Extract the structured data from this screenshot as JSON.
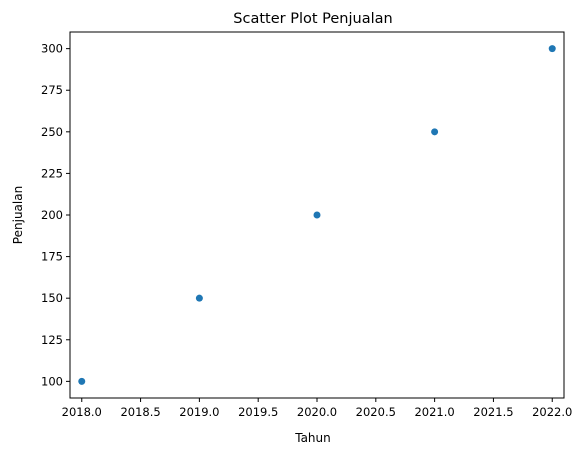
{
  "chart_data": {
    "type": "scatter",
    "title": "Scatter Plot Penjualan",
    "xlabel": "Tahun",
    "ylabel": "Penjualan",
    "x": [
      2018,
      2019,
      2020,
      2021,
      2022
    ],
    "y": [
      100,
      150,
      200,
      250,
      300
    ],
    "xlim": [
      2017.9,
      2022.1
    ],
    "ylim": [
      90,
      310
    ],
    "xticks": [
      2018.0,
      2018.5,
      2019.0,
      2019.5,
      2020.0,
      2020.5,
      2021.0,
      2021.5,
      2022.0
    ],
    "xtick_labels": [
      "2018.0",
      "2018.5",
      "2019.0",
      "2019.5",
      "2020.0",
      "2020.5",
      "2021.0",
      "2021.5",
      "2022.0"
    ],
    "yticks": [
      100,
      125,
      150,
      175,
      200,
      225,
      250,
      275,
      300
    ],
    "ytick_labels": [
      "100",
      "125",
      "150",
      "175",
      "200",
      "225",
      "250",
      "275",
      "300"
    ],
    "grid": false,
    "marker_color": "#1f77b4"
  }
}
